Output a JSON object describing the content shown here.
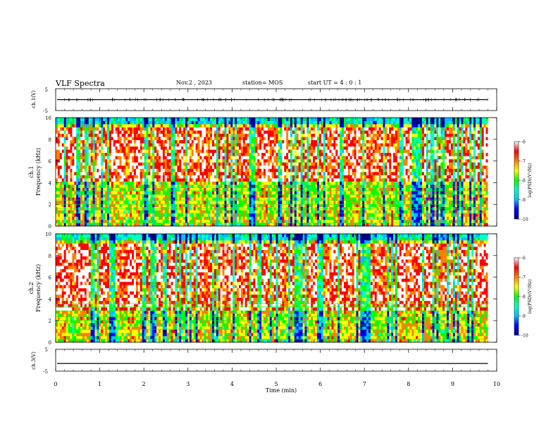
{
  "header": {
    "title": "VLF Spectra",
    "date": "Nov.2 , 2023",
    "station": "station= MOS",
    "start_ut": "start UT = 4 : 0 : 1"
  },
  "colors": {
    "colormap": [
      "#00008b",
      "#0000ff",
      "#00bfff",
      "#00ffcc",
      "#00ff00",
      "#ffff00",
      "#ff8000",
      "#ff0000",
      "#ffffff"
    ],
    "trace": "#000000"
  },
  "chart_data": [
    {
      "type": "line",
      "name": "ch1-waveform",
      "ylabel": "ch.1(V)",
      "ylim": [
        -5,
        5
      ],
      "ytick_labels": [
        "5",
        "-5"
      ],
      "x": [
        0,
        10
      ],
      "values": [
        0,
        0
      ]
    },
    {
      "type": "heatmap",
      "name": "ch1-spectrogram",
      "ylabel": "ch.1\nFrequency (kHz)",
      "ylabel_channel": "ch.1",
      "ylabel_freq": "Frequency (kHz)",
      "ylim": [
        0,
        10
      ],
      "ytick_labels": [
        "0",
        "2",
        "4",
        "6",
        "8",
        "10"
      ],
      "xlim": [
        0,
        9.8
      ],
      "colorbar": {
        "label": "log(PSD)(V²/Hz)",
        "range": [
          -10,
          -6
        ],
        "tick_labels": [
          "-6",
          "-7",
          "-8",
          "-9",
          "-10"
        ]
      },
      "note": "broadband emission 4-9 kHz strongest (log PSD ~ -6.5 to -7); horizontal narrowband lines near 0.3-3.5 kHz"
    },
    {
      "type": "heatmap",
      "name": "ch2-spectrogram",
      "ylabel": "ch.2\nFrequency (kHz)",
      "ylabel_channel": "ch.2",
      "ylabel_freq": "Frequency (kHz)",
      "ylim": [
        0,
        10
      ],
      "ytick_labels": [
        "0",
        "2",
        "4",
        "6",
        "8",
        "10"
      ],
      "xlim": [
        0,
        9.8
      ],
      "colorbar": {
        "label": "log(PSD)(V²/Hz)",
        "range": [
          -10,
          -6
        ],
        "tick_labels": [
          "-6",
          "-7",
          "-8",
          "-9",
          "-10"
        ]
      },
      "note": "broadband emission 3-9 kHz strongest; weak band below 2 kHz"
    },
    {
      "type": "line",
      "name": "ch3-waveform",
      "ylabel": "ch.3(V)",
      "ylim": [
        -5,
        5
      ],
      "ytick_labels": [
        "5",
        "-5"
      ],
      "x": [
        0,
        10
      ],
      "values": [
        -1.5,
        -1.5
      ]
    }
  ],
  "xaxis": {
    "xlabel": "Time (min)",
    "xlim": [
      0,
      10
    ],
    "tick_labels": [
      "0",
      "1",
      "2",
      "3",
      "4",
      "5",
      "6",
      "7",
      "8",
      "9",
      "10"
    ]
  }
}
